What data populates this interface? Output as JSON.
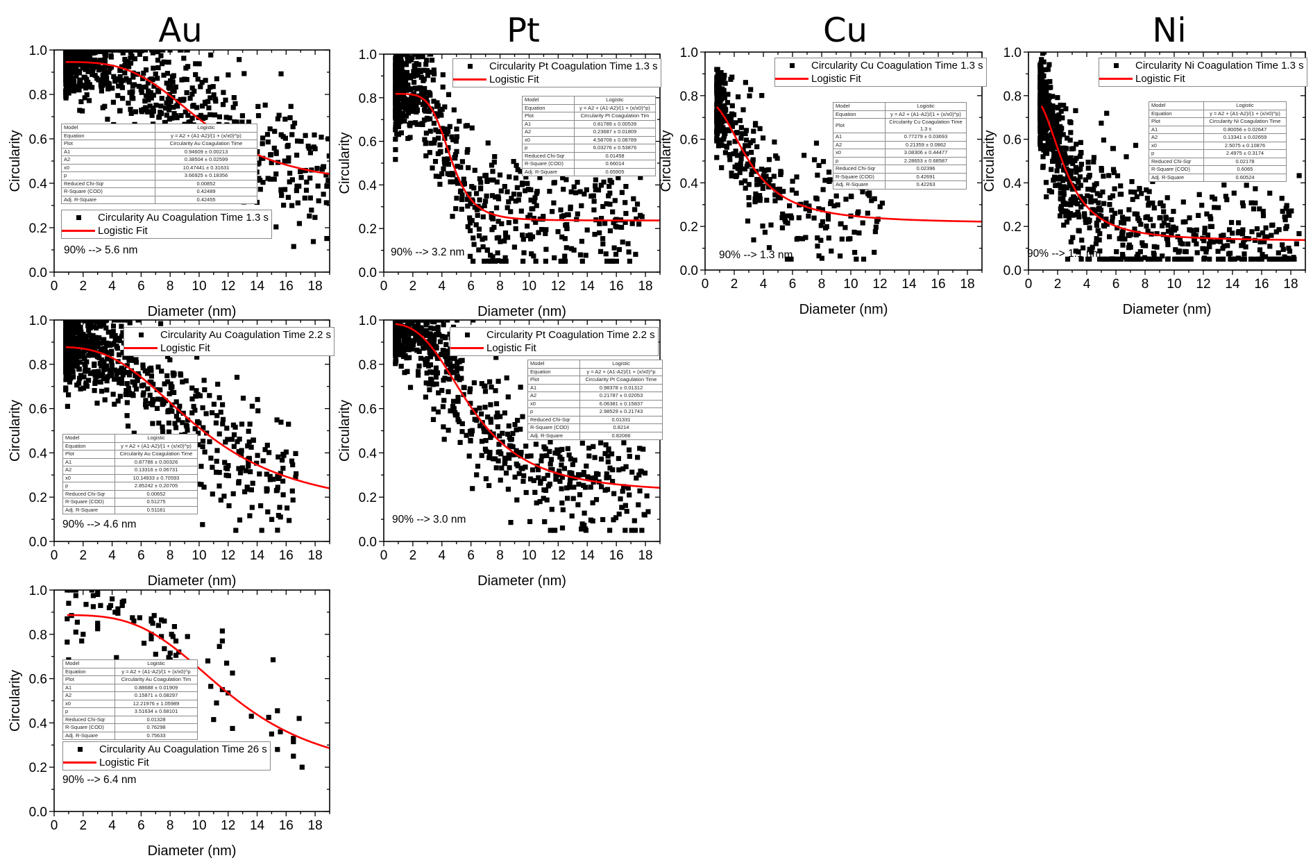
{
  "column_titles": [
    "Au",
    "Pt",
    "Cu",
    "Ni"
  ],
  "chart_data": [
    {
      "id": "au_1_3",
      "type": "scatter",
      "metal": "Au",
      "title": "",
      "xlabel": "Diameter (nm)",
      "ylabel": "Circularity",
      "xlim": [
        0,
        19
      ],
      "ylim": [
        0,
        1.0
      ],
      "xticks": [
        "0",
        "2",
        "4",
        "6",
        "8",
        "10",
        "12",
        "14",
        "16",
        "18"
      ],
      "yticks": [
        "0.0",
        "0.2",
        "0.4",
        "0.6",
        "0.8",
        "1.0"
      ],
      "legend": {
        "placement": "lower-left",
        "entries": [
          "Circularity Au Coagulation Time 1.3 s",
          "Logistic Fit"
        ]
      },
      "annotation": "90% --> 5.6 nm",
      "fit": {
        "model": "Logistic",
        "A1": 0.94609,
        "A2": 0.38504,
        "x0": 10.47441,
        "p": 3.66925,
        "x_range": [
          0.8,
          19
        ]
      },
      "fit_table": [
        [
          "Model",
          "Logistic"
        ],
        [
          "Equation",
          "y = A2 + (A1-A2)/(1 + (x/x0)^p)"
        ],
        [
          "Plot",
          "Circularity Au Coagulation Time"
        ],
        [
          "A1",
          "0.94609 ± 0.00213"
        ],
        [
          "A2",
          "0.38504 ± 0.02599"
        ],
        [
          "x0",
          "10.47441 ± 0.31631"
        ],
        [
          "p",
          "3.66925 ± 0.18356"
        ],
        [
          "Reduced Chi-Sqr",
          "0.00852"
        ],
        [
          "R-Square (COD)",
          "0.42489"
        ],
        [
          "Adj. R-Square",
          "0.42455"
        ]
      ],
      "scatter": {
        "density": "dense",
        "approx_points": 900,
        "x_range": [
          0.8,
          19
        ],
        "note": "dense cluster near 0.85-1.0 at small diameters, spreading down to ~0.3 at larger diameters"
      }
    },
    {
      "id": "pt_1_3",
      "type": "scatter",
      "metal": "Pt",
      "title": "",
      "xlabel": "Diameter (nm)",
      "ylabel": "Circularity",
      "xlim": [
        0,
        19
      ],
      "ylim": [
        0,
        1.0
      ],
      "xticks": [
        "0",
        "2",
        "4",
        "6",
        "8",
        "10",
        "12",
        "14",
        "16",
        "18"
      ],
      "yticks": [
        "0.0",
        "0.2",
        "0.4",
        "0.6",
        "0.8",
        "1.0"
      ],
      "legend": {
        "placement": "top-right",
        "entries": [
          "Circularity Pt Coagulation Time 1.3 s",
          "Logistic Fit"
        ]
      },
      "annotation": "90% --> 3.2 nm",
      "fit": {
        "model": "Logistic",
        "A1": 0.81789,
        "A2": 0.23687,
        "x0": 4.58709,
        "p": 6.03276,
        "x_range": [
          0.8,
          19
        ]
      },
      "fit_table": [
        [
          "Model",
          "Logistic"
        ],
        [
          "Equation",
          "y = A2 + (A1-A2)/(1 + (x/x0)^p)"
        ],
        [
          "Plot",
          "Circularity Pt Coagulation Tim"
        ],
        [
          "A1",
          "0.81789 ± 0.00539"
        ],
        [
          "A2",
          "0.23687 ± 0.01809"
        ],
        [
          "x0",
          "4.58709 ± 0.08789"
        ],
        [
          "p",
          "6.03276 ± 0.53876"
        ],
        [
          "Reduced Chi-Sqr",
          "0.01458"
        ],
        [
          "R-Square (COD)",
          "0.66014"
        ],
        [
          "Adj. R-Square",
          "0.65905"
        ]
      ],
      "scatter": {
        "density": "dense",
        "approx_points": 700,
        "x_range": [
          0.8,
          17.8
        ]
      }
    },
    {
      "id": "cu_1_3",
      "type": "scatter",
      "metal": "Cu",
      "title": "",
      "xlabel": "Diameter (nm)",
      "ylabel": "Circularity",
      "xlim": [
        0,
        19
      ],
      "ylim": [
        0,
        1.0
      ],
      "xticks": [
        "0",
        "2",
        "4",
        "6",
        "8",
        "10",
        "12",
        "14",
        "16",
        "18"
      ],
      "yticks": [
        "0.0",
        "0.2",
        "0.4",
        "0.6",
        "0.8",
        "1.0"
      ],
      "legend": {
        "placement": "top-right",
        "entries": [
          "Circularity Cu Coagulation Time 1.3 s",
          "Logistic Fit"
        ]
      },
      "annotation": "90% --> 1.3 nm",
      "fit": {
        "model": "Logistic",
        "A1": 0.77279,
        "A2": 0.21359,
        "x0": 3.08306,
        "p": 2.28653,
        "x_range": [
          0.8,
          19
        ]
      },
      "fit_table": [
        [
          "Model",
          "Logistic"
        ],
        [
          "Equation",
          "y = A2 + (A1-A2)/(1 + (x/x0)^p)"
        ],
        [
          "Plot",
          "Circularity Cu Coagulation Time 1.3 s"
        ],
        [
          "A1",
          "0.77279 ± 0.03693"
        ],
        [
          "A2",
          "0.21359 ± 0.0862"
        ],
        [
          "x0",
          "3.08306 ± 0.44477"
        ],
        [
          "p",
          "2.28653 ± 0.68587"
        ],
        [
          "Reduced Chi-Sqr",
          "0.02396"
        ],
        [
          "R-Square (COD)",
          "0.42691"
        ],
        [
          "Adj. R-Square",
          "0.42263"
        ]
      ],
      "scatter": {
        "density": "medium",
        "approx_points": 400,
        "x_range": [
          0.8,
          12.2
        ]
      }
    },
    {
      "id": "ni_1_3",
      "type": "scatter",
      "metal": "Ni",
      "title": "",
      "xlabel": "Diameter (nm)",
      "ylabel": "Circularity",
      "xlim": [
        0,
        19
      ],
      "ylim": [
        0,
        1.0
      ],
      "xticks": [
        "0",
        "2",
        "4",
        "6",
        "8",
        "10",
        "12",
        "14",
        "16",
        "18"
      ],
      "yticks": [
        "0.0",
        "0.2",
        "0.4",
        "0.6",
        "0.8",
        "1.0"
      ],
      "legend": {
        "placement": "top-right",
        "entries": [
          "Circularity Ni Coagulation Time 1.3 s",
          "Logistic Fit"
        ]
      },
      "annotation": "90% --> 1.1 nm",
      "fit": {
        "model": "Logistic",
        "A1": 0.80056,
        "A2": 0.13341,
        "x0": 2.5075,
        "p": 2.4975,
        "x_range": [
          0.9,
          19
        ]
      },
      "fit_table": [
        [
          "Model",
          "Logistic"
        ],
        [
          "Equation",
          "y = A2 + (A1-A2)/(1 + (x/x0)^p)"
        ],
        [
          "Plot",
          "Circularity Ni Coagulation Time"
        ],
        [
          "A1",
          "0.80056 ± 0.02647"
        ],
        [
          "A2",
          "0.13341 ± 0.02659"
        ],
        [
          "x0",
          "2.5075 ± 0.10876"
        ],
        [
          "p",
          "2.4975 ± 0.3174"
        ],
        [
          "Reduced Chi-Sqr",
          "0.02178"
        ],
        [
          "R-Square (COD)",
          "0.6065"
        ],
        [
          "Adj. R-Square",
          "0.60524"
        ]
      ],
      "scatter": {
        "density": "dense",
        "approx_points": 900,
        "x_range": [
          0.8,
          18.6
        ]
      }
    },
    {
      "id": "au_2_2",
      "type": "scatter",
      "metal": "Au",
      "title": "",
      "xlabel": "Diameter (nm)",
      "ylabel": "Circularity",
      "xlim": [
        0,
        19
      ],
      "ylim": [
        0,
        1.0
      ],
      "xticks": [
        "0",
        "2",
        "4",
        "6",
        "8",
        "10",
        "12",
        "14",
        "16",
        "18"
      ],
      "yticks": [
        "0.0",
        "0.2",
        "0.4",
        "0.6",
        "0.8",
        "1.0"
      ],
      "legend": {
        "placement": "top-right",
        "entries": [
          "Circularity Au Coagulation Time 2.2 s",
          "Logistic Fit"
        ]
      },
      "annotation": "90% --> 4.6 nm",
      "fit": {
        "model": "Logistic",
        "A1": 0.87786,
        "A2": 0.13316,
        "x0": 10.14933,
        "p": 2.85242,
        "x_range": [
          0.8,
          19
        ]
      },
      "fit_table": [
        [
          "Model",
          "Logistic"
        ],
        [
          "Equation",
          "y = A2 + (A1-A2)/(1 + (x/x0)^p)"
        ],
        [
          "Plot",
          "Circularity Au Coagulation Time"
        ],
        [
          "A1",
          "0.87786 ± 0.00326"
        ],
        [
          "A2",
          "0.13316 ± 0.06731"
        ],
        [
          "x0",
          "10.14933 ± 0.70593"
        ],
        [
          "p",
          "2.85242 ± 0.20705"
        ],
        [
          "Reduced Chi-Sqr",
          "0.00652"
        ],
        [
          "R-Square (COD)",
          "0.51275"
        ],
        [
          "Adj. R-Square",
          "0.51181"
        ]
      ],
      "scatter": {
        "density": "dense",
        "approx_points": 800,
        "x_range": [
          0.8,
          16.7
        ]
      }
    },
    {
      "id": "pt_2_2",
      "type": "scatter",
      "metal": "Pt",
      "title": "",
      "xlabel": "Diameter (nm)",
      "ylabel": "Circularity",
      "xlim": [
        0,
        19
      ],
      "ylim": [
        0,
        1.0
      ],
      "xticks": [
        "0",
        "2",
        "4",
        "6",
        "8",
        "10",
        "12",
        "14",
        "16",
        "18"
      ],
      "yticks": [
        "0.0",
        "0.2",
        "0.4",
        "0.6",
        "0.8",
        "1.0"
      ],
      "legend": {
        "placement": "top-right",
        "entries": [
          "Circularity Pt Coagulation Time 2.2 s",
          "Logistic Fit"
        ]
      },
      "annotation": "90% --> 3.0 nm",
      "fit": {
        "model": "Logistic",
        "A1": 0.98378,
        "A2": 0.21787,
        "x0": 6.06381,
        "p": 2.98529,
        "x_range": [
          0.8,
          19
        ]
      },
      "fit_table": [
        [
          "Model",
          "Logistic"
        ],
        [
          "Equation",
          "y = A2 + (A1-A2)/(1 + (x/x0)^p"
        ],
        [
          "Plot",
          "Circularity Pt Coagulation Time"
        ],
        [
          "A1",
          "0.98378 ± 0.01312"
        ],
        [
          "A2",
          "0.21787 ± 0.02053"
        ],
        [
          "x0",
          "6.06381 ± 0.15837"
        ],
        [
          "p",
          "2.98529 ± 0.21743"
        ],
        [
          "Reduced Chi-Sqr",
          "0.01331"
        ],
        [
          "R-Square (COD)",
          "0.8214"
        ],
        [
          "Adj. R-Square",
          "0.82066"
        ]
      ],
      "scatter": {
        "density": "dense",
        "approx_points": 800,
        "x_range": [
          0.8,
          18.2
        ]
      }
    },
    {
      "id": "au_26",
      "type": "scatter",
      "metal": "Au",
      "title": "",
      "xlabel": "Diameter (nm)",
      "ylabel": "Circularity",
      "xlim": [
        0,
        19
      ],
      "ylim": [
        0,
        1.0
      ],
      "xticks": [
        "0",
        "2",
        "4",
        "6",
        "8",
        "10",
        "12",
        "14",
        "16",
        "18"
      ],
      "yticks": [
        "0.0",
        "0.2",
        "0.4",
        "0.6",
        "0.8",
        "1.0"
      ],
      "legend": {
        "placement": "lower-left",
        "entries": [
          "Circularity Au Coagulation Time 26 s",
          "Logistic Fit"
        ]
      },
      "annotation": "90% --> 6.4 nm",
      "fit": {
        "model": "Logistic",
        "A1": 0.88688,
        "A2": 0.15871,
        "x0": 12.21976,
        "p": 3.51634,
        "x_range": [
          0.9,
          19
        ]
      },
      "fit_table": [
        [
          "Model",
          "Logistic"
        ],
        [
          "Equation",
          "y = A2 + (A1-A2)/(1 + (x/x0)^p"
        ],
        [
          "Plot",
          "Circularity Au Coagulation Tim"
        ],
        [
          "A1",
          "0.88688 ± 0.01909"
        ],
        [
          "A2",
          "0.15871 ± 0.08297"
        ],
        [
          "x0",
          "12.21976 ± 1.05989"
        ],
        [
          "p",
          "3.51634 ± 0.68101"
        ],
        [
          "Reduced Chi-Sqr",
          "0.01328"
        ],
        [
          "R-Square (COD)",
          "0.76298"
        ],
        [
          "Adj. R-Square",
          "0.75633"
        ]
      ],
      "points": [
        [
          0.9,
          1.0
        ],
        [
          1.1,
          1.0
        ],
        [
          1.3,
          1.0
        ],
        [
          1.5,
          1.0
        ],
        [
          2.6,
          1.0
        ],
        [
          3.0,
          0.99
        ],
        [
          1.5,
          0.975
        ],
        [
          2.7,
          0.975
        ],
        [
          3.0,
          0.98
        ],
        [
          1.0,
          0.94
        ],
        [
          2.2,
          0.935
        ],
        [
          2.7,
          0.925
        ],
        [
          3.2,
          0.93
        ],
        [
          3.8,
          0.92
        ],
        [
          3.9,
          0.93
        ],
        [
          4.0,
          0.96
        ],
        [
          4.2,
          0.9
        ],
        [
          4.4,
          0.915
        ],
        [
          4.4,
          0.895
        ],
        [
          4.7,
          0.945
        ],
        [
          4.8,
          0.95
        ],
        [
          4.7,
          0.93
        ],
        [
          0.9,
          0.87
        ],
        [
          1.2,
          0.885
        ],
        [
          1.6,
          0.855
        ],
        [
          1.5,
          0.81
        ],
        [
          2.0,
          0.8
        ],
        [
          1.9,
          0.77
        ],
        [
          0.9,
          0.765
        ],
        [
          1.0,
          0.685
        ],
        [
          3.0,
          0.835
        ],
        [
          3.0,
          0.825
        ],
        [
          3.0,
          0.85
        ],
        [
          4.3,
          0.695
        ],
        [
          5.4,
          0.875
        ],
        [
          5.5,
          0.86
        ],
        [
          5.9,
          0.875
        ],
        [
          6.2,
          0.76
        ],
        [
          6.7,
          0.87
        ],
        [
          6.7,
          0.86
        ],
        [
          6.8,
          0.85
        ],
        [
          6.9,
          0.885
        ],
        [
          6.7,
          0.8
        ],
        [
          6.7,
          0.78
        ],
        [
          7.0,
          0.71
        ],
        [
          7.2,
          0.84
        ],
        [
          7.4,
          0.865
        ],
        [
          7.6,
          0.86
        ],
        [
          7.4,
          0.79
        ],
        [
          7.6,
          0.735
        ],
        [
          7.9,
          0.695
        ],
        [
          8.0,
          0.715
        ],
        [
          8.0,
          0.685
        ],
        [
          8.1,
          0.8
        ],
        [
          8.2,
          0.79
        ],
        [
          8.3,
          0.835
        ],
        [
          8.4,
          0.77
        ],
        [
          8.4,
          0.705
        ],
        [
          8.6,
          0.72
        ],
        [
          9.2,
          0.79
        ],
        [
          9.3,
          0.45
        ],
        [
          9.4,
          0.495
        ],
        [
          9.5,
          0.595
        ],
        [
          9.5,
          0.55
        ],
        [
          10.6,
          0.68
        ],
        [
          10.8,
          0.565
        ],
        [
          11.2,
          0.49
        ],
        [
          11.0,
          0.415
        ],
        [
          11.4,
          0.745
        ],
        [
          11.6,
          0.77
        ],
        [
          11.6,
          0.815
        ],
        [
          11.6,
          0.55
        ],
        [
          11.9,
          0.67
        ],
        [
          12.0,
          0.535
        ],
        [
          12.3,
          0.625
        ],
        [
          12.3,
          0.375
        ],
        [
          13.6,
          0.43
        ],
        [
          14.8,
          0.425
        ],
        [
          15.0,
          0.35
        ],
        [
          15.1,
          0.685
        ],
        [
          15.4,
          0.455
        ],
        [
          15.4,
          0.28
        ],
        [
          15.6,
          0.36
        ],
        [
          16.5,
          0.33
        ],
        [
          16.5,
          0.315
        ],
        [
          16.5,
          0.25
        ],
        [
          16.9,
          0.42
        ],
        [
          17.1,
          0.2
        ]
      ]
    }
  ]
}
